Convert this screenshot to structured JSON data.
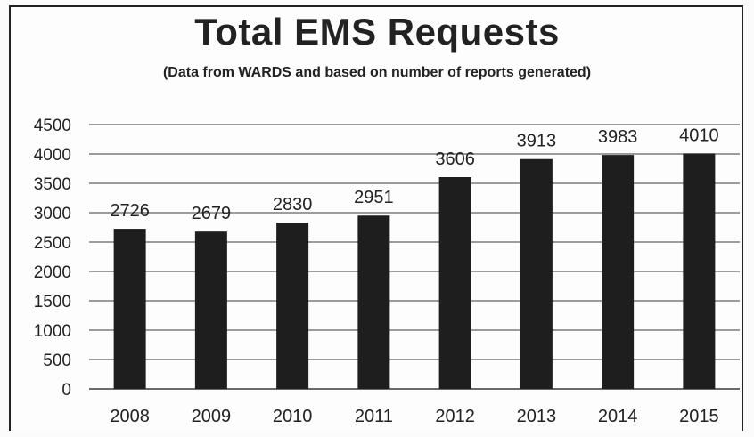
{
  "chart_data": {
    "type": "bar",
    "title": "Total EMS Requests",
    "subtitle": "(Data from WARDS and based on number of reports generated)",
    "xlabel": "",
    "ylabel": "",
    "categories": [
      "2008",
      "2009",
      "2010",
      "2011",
      "2012",
      "2013",
      "2014",
      "2015"
    ],
    "values": [
      2726,
      2679,
      2830,
      2951,
      3606,
      3913,
      3983,
      4010
    ],
    "ylim": [
      0,
      4500
    ],
    "yticks": [
      0,
      500,
      1000,
      1500,
      2000,
      2500,
      3000,
      3500,
      4000,
      4500
    ],
    "grid": true,
    "bar_color": "#1e1e1e",
    "legend": "none"
  }
}
